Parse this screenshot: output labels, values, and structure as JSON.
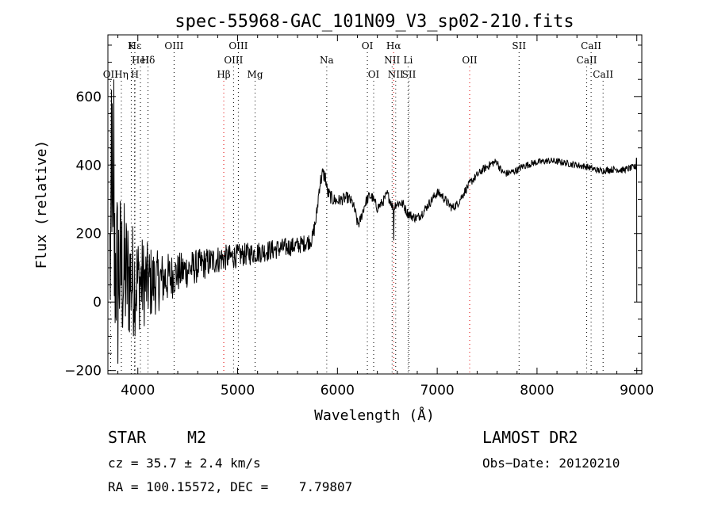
{
  "chart_data": {
    "type": "line",
    "title": "spec-55968-GAC_101N09_V3_sp02-210.fits",
    "xlabel": "Wavelength (Å)",
    "ylabel": "Flux (relative)",
    "xlim": [
      3700,
      9050
    ],
    "ylim": [
      -210,
      780
    ],
    "x_ticks": [
      4000,
      5000,
      6000,
      7000,
      8000,
      9000
    ],
    "x_tick_labels": [
      "4000",
      "5000",
      "6000",
      "7000",
      "8000",
      "9000"
    ],
    "y_ticks": [
      -200,
      0,
      200,
      400,
      600
    ],
    "y_tick_labels": [
      "−200",
      "0",
      "200",
      "400",
      "600"
    ],
    "grid": false,
    "series": [
      {
        "color": "#000000",
        "continuum": [
          [
            3700,
            120
          ],
          [
            3780,
            100
          ],
          [
            3900,
            70
          ],
          [
            4000,
            60
          ],
          [
            4100,
            55
          ],
          [
            4200,
            60
          ],
          [
            4300,
            70
          ],
          [
            4400,
            85
          ],
          [
            4500,
            95
          ],
          [
            4600,
            105
          ],
          [
            4700,
            115
          ],
          [
            4800,
            125
          ],
          [
            4900,
            130
          ],
          [
            5000,
            135
          ],
          [
            5100,
            140
          ],
          [
            5200,
            145
          ],
          [
            5300,
            150
          ],
          [
            5400,
            155
          ],
          [
            5500,
            160
          ],
          [
            5600,
            165
          ],
          [
            5700,
            175
          ],
          [
            5750,
            185
          ],
          [
            5790,
            250
          ],
          [
            5820,
            340
          ],
          [
            5850,
            375
          ],
          [
            5880,
            365
          ],
          [
            5900,
            320
          ],
          [
            5950,
            300
          ],
          [
            6000,
            295
          ],
          [
            6050,
            300
          ],
          [
            6100,
            305
          ],
          [
            6150,
            290
          ],
          [
            6180,
            260
          ],
          [
            6200,
            230
          ],
          [
            6220,
            230
          ],
          [
            6250,
            260
          ],
          [
            6280,
            290
          ],
          [
            6320,
            310
          ],
          [
            6350,
            305
          ],
          [
            6400,
            275
          ],
          [
            6450,
            290
          ],
          [
            6500,
            315
          ],
          [
            6540,
            290
          ],
          [
            6560,
            270
          ],
          [
            6580,
            285
          ],
          [
            6620,
            290
          ],
          [
            6660,
            285
          ],
          [
            6700,
            260
          ],
          [
            6750,
            250
          ],
          [
            6800,
            245
          ],
          [
            6850,
            260
          ],
          [
            6900,
            280
          ],
          [
            6950,
            300
          ],
          [
            7000,
            320
          ],
          [
            7050,
            310
          ],
          [
            7100,
            290
          ],
          [
            7150,
            275
          ],
          [
            7200,
            285
          ],
          [
            7250,
            310
          ],
          [
            7300,
            335
          ],
          [
            7350,
            355
          ],
          [
            7400,
            370
          ],
          [
            7450,
            385
          ],
          [
            7500,
            395
          ],
          [
            7550,
            405
          ],
          [
            7600,
            410
          ],
          [
            7620,
            395
          ],
          [
            7650,
            380
          ],
          [
            7700,
            375
          ],
          [
            7750,
            380
          ],
          [
            7800,
            385
          ],
          [
            7850,
            395
          ],
          [
            7900,
            400
          ],
          [
            7950,
            405
          ],
          [
            8000,
            408
          ],
          [
            8050,
            410
          ],
          [
            8100,
            412
          ],
          [
            8150,
            412
          ],
          [
            8200,
            410
          ],
          [
            8250,
            408
          ],
          [
            8300,
            405
          ],
          [
            8350,
            402
          ],
          [
            8400,
            400
          ],
          [
            8450,
            397
          ],
          [
            8500,
            395
          ],
          [
            8550,
            390
          ],
          [
            8600,
            385
          ],
          [
            8650,
            383
          ],
          [
            8700,
            385
          ],
          [
            8750,
            387
          ],
          [
            8800,
            387
          ],
          [
            8850,
            385
          ],
          [
            8900,
            388
          ],
          [
            8950,
            392
          ],
          [
            8990,
            395
          ]
        ],
        "noise_amplitude": [
          [
            3700,
            280
          ],
          [
            3800,
            260
          ],
          [
            3900,
            200
          ],
          [
            4000,
            150
          ],
          [
            4200,
            90
          ],
          [
            4400,
            60
          ],
          [
            4700,
            45
          ],
          [
            5000,
            35
          ],
          [
            5400,
            30
          ],
          [
            5700,
            25
          ],
          [
            5800,
            25
          ],
          [
            6000,
            18
          ],
          [
            6500,
            15
          ],
          [
            7000,
            14
          ],
          [
            7500,
            12
          ],
          [
            8000,
            10
          ],
          [
            8500,
            10
          ],
          [
            9000,
            10
          ]
        ],
        "features": [
          {
            "x": 3735,
            "y": 620
          },
          {
            "x": 3745,
            "y": 580
          },
          {
            "x": 3760,
            "y": 650
          },
          {
            "x": 3800,
            "y": -180
          },
          {
            "x": 3830,
            "y": 460
          },
          {
            "x": 3930,
            "y": -200
          },
          {
            "x": 4230,
            "y": -90
          },
          {
            "x": 4330,
            "y": 150
          },
          {
            "x": 6563,
            "y": 180
          },
          {
            "x": 8995,
            "y": 420
          },
          {
            "x": 9000,
            "y": 0
          }
        ]
      }
    ],
    "line_markers": [
      {
        "label": "Hε",
        "x": 3970,
        "row": 0,
        "color": "#000000"
      },
      {
        "label": "K",
        "x": 3934,
        "row": 0,
        "color": "#000000"
      },
      {
        "label": "HeI",
        "x": 4026,
        "row": 1,
        "color": "#000000"
      },
      {
        "label": "Hδ",
        "x": 4102,
        "row": 1,
        "color": "#000000"
      },
      {
        "label": "OII",
        "x": 3727,
        "row": 2,
        "color": "#000000"
      },
      {
        "label": "Hη",
        "x": 3835,
        "row": 2,
        "color": "#000000"
      },
      {
        "label": "H",
        "x": 3969,
        "row": 2,
        "color": "#000000"
      },
      {
        "label": "OIII",
        "x": 4363,
        "row": 0,
        "color": "#000000"
      },
      {
        "label": "OIII",
        "x": 5007,
        "row": 0,
        "color": "#000000"
      },
      {
        "label": "OIII",
        "x": 4959,
        "row": 1,
        "color": "#000000"
      },
      {
        "label": "Hβ",
        "x": 4861,
        "row": 2,
        "color": "#e00000"
      },
      {
        "label": "Mg",
        "x": 5175,
        "row": 2,
        "color": "#000000"
      },
      {
        "label": "Na",
        "x": 5893,
        "row": 1,
        "color": "#000000"
      },
      {
        "label": "OI",
        "x": 6300,
        "row": 0,
        "color": "#000000"
      },
      {
        "label": "OI",
        "x": 6363,
        "row": 2,
        "color": "#000000"
      },
      {
        "label": "Hα",
        "x": 6563,
        "row": 0,
        "color": "#e00000"
      },
      {
        "label": "NII",
        "x": 6548,
        "row": 1,
        "color": "#000000"
      },
      {
        "label": "Li",
        "x": 6708,
        "row": 1,
        "color": "#000000"
      },
      {
        "label": "NII",
        "x": 6584,
        "row": 2,
        "color": "#000000"
      },
      {
        "label": "SII",
        "x": 6717,
        "row": 2,
        "color": "#000000"
      },
      {
        "label": "OII",
        "x": 7325,
        "row": 1,
        "color": "#e00000"
      },
      {
        "label": "SII",
        "x": 7820,
        "row": 0,
        "color": "#000000"
      },
      {
        "label": "CaII",
        "x": 8542,
        "row": 0,
        "color": "#000000"
      },
      {
        "label": "CaII",
        "x": 8498,
        "row": 1,
        "color": "#000000"
      },
      {
        "label": "CaII",
        "x": 8662,
        "row": 2,
        "color": "#000000"
      }
    ]
  },
  "info": {
    "object_class": "STAR",
    "subclass": "M2",
    "cz": "cz = 35.7 ± 2.4 km/s",
    "coords": "RA = 100.15572, DEC =    7.79807",
    "survey": "LAMOST DR2",
    "obs_date": "Obs−Date: 20120210"
  }
}
